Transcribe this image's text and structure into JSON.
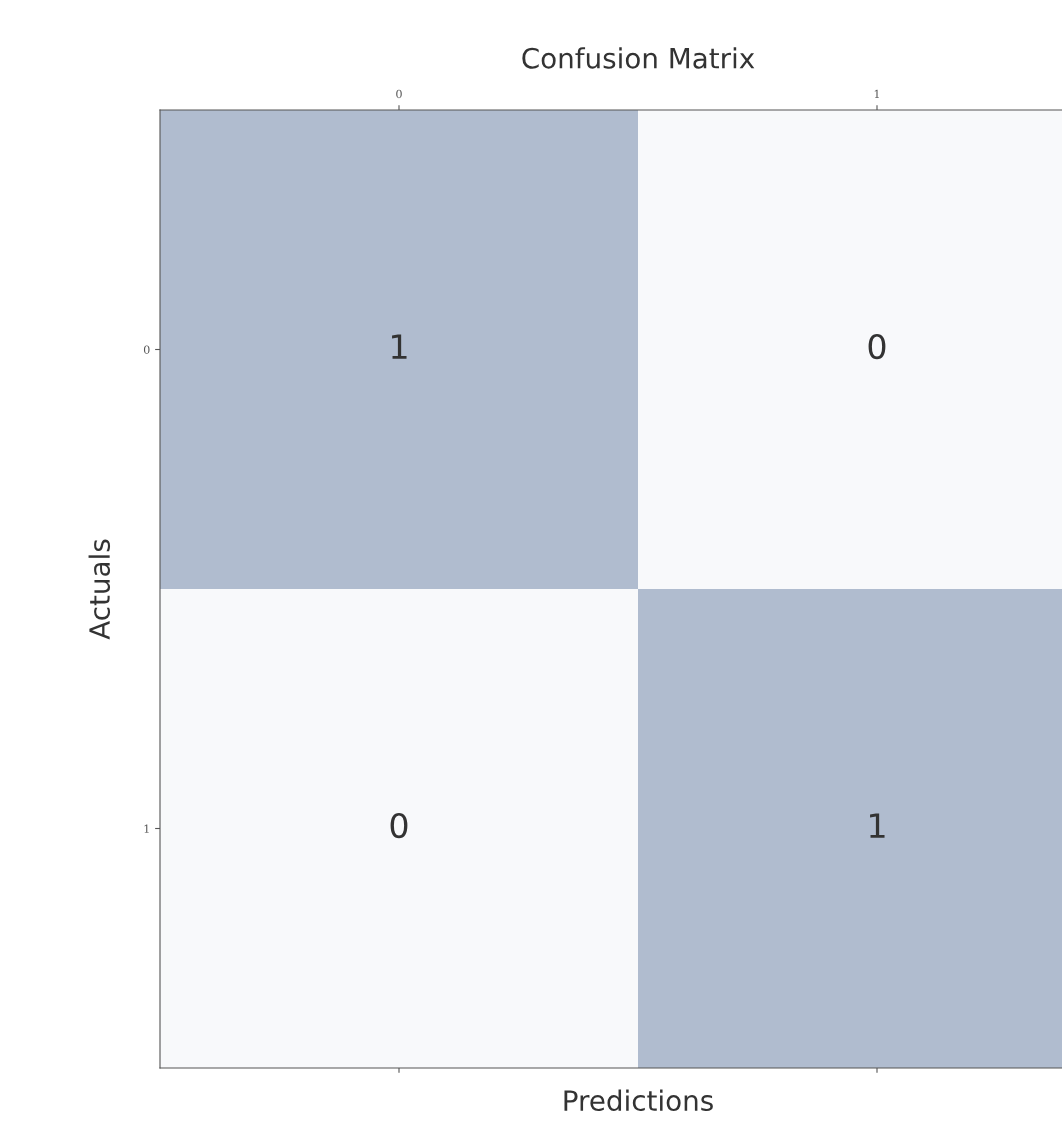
{
  "chart_data": {
    "type": "heatmap",
    "title": "Confusion Matrix",
    "xlabel": "Predictions",
    "ylabel": "Actuals",
    "categories": [
      "0",
      "1"
    ],
    "y_categories": [
      "0",
      "1"
    ],
    "cells": [
      [
        1,
        0
      ],
      [
        0,
        1
      ]
    ],
    "data_labels": true,
    "grid": false
  }
}
